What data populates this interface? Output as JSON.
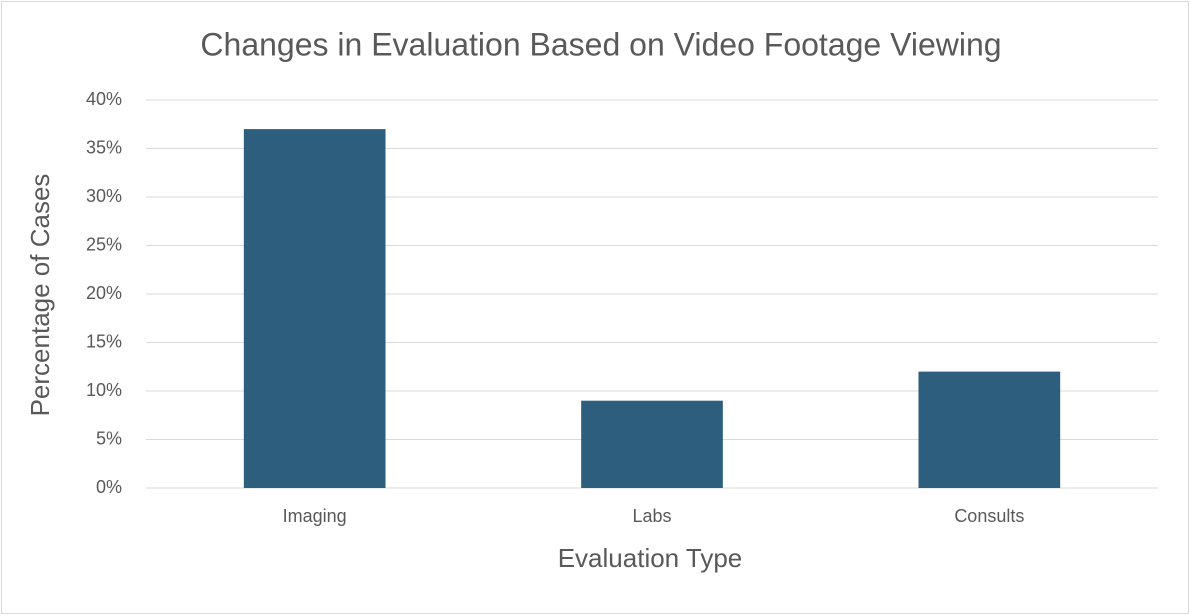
{
  "chart_data": {
    "type": "bar",
    "title": "Changes in Evaluation Based on Video Footage Viewing",
    "x_label": "Evaluation Type",
    "y_label": "Percentage of Cases",
    "categories": [
      "Imaging",
      "Labs",
      "Consults"
    ],
    "values": [
      37,
      9,
      12
    ],
    "color": "#2e5e7e",
    "ylim": [
      0,
      40
    ],
    "yticks": [
      {
        "value": 0,
        "label": "0%"
      },
      {
        "value": 5,
        "label": "5%"
      },
      {
        "value": 10,
        "label": "10%"
      },
      {
        "value": 15,
        "label": "15%"
      },
      {
        "value": 20,
        "label": "20%"
      },
      {
        "value": 25,
        "label": "25%"
      },
      {
        "value": 30,
        "label": "30%"
      },
      {
        "value": 35,
        "label": "35%"
      },
      {
        "value": 40,
        "label": "40%"
      }
    ],
    "grid": true
  }
}
